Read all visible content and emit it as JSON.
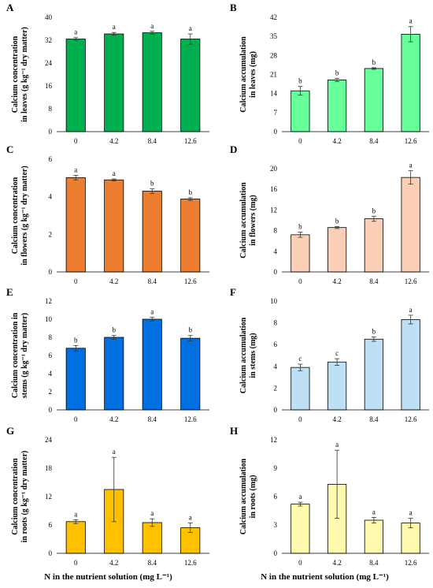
{
  "x_axis_title": "N in the nutrient solution (mg L⁻¹)",
  "chart_data": [
    {
      "panel": "A",
      "type": "bar",
      "color": "#00b04f",
      "ylabel": [
        "Calcium concentration",
        "in leaves (g kg⁻¹ dry matter)"
      ],
      "categories": [
        "0",
        "4.2",
        "8.4",
        "12.6"
      ],
      "values": [
        32.4,
        34.2,
        34.6,
        32.4
      ],
      "errors": [
        0.5,
        0.5,
        0.5,
        1.8
      ],
      "letters": [
        "a",
        "a",
        "a",
        "a"
      ],
      "ylim": [
        0,
        40
      ],
      "yticks": [
        0,
        8,
        16,
        24,
        32,
        40
      ]
    },
    {
      "panel": "B",
      "type": "bar",
      "color": "#66ff99",
      "ylabel": [
        "Calcium accumulation",
        "in leaves (mg)"
      ],
      "categories": [
        "0",
        "4.2",
        "8.4",
        "12.6"
      ],
      "values": [
        15.0,
        19.0,
        23.2,
        35.8
      ],
      "errors": [
        1.6,
        0.6,
        0.3,
        2.8
      ],
      "letters": [
        "b",
        "b",
        "b",
        "a"
      ],
      "ylim": [
        0,
        42
      ],
      "yticks": [
        0,
        7,
        14,
        21,
        28,
        35,
        42
      ]
    },
    {
      "panel": "C",
      "type": "bar",
      "color": "#ed7d31",
      "ylabel": [
        "Calcium concentration",
        "in flowers (g kg⁻¹ dry matter)"
      ],
      "categories": [
        "0",
        "4.2",
        "8.4",
        "12.6"
      ],
      "values": [
        5.02,
        4.9,
        4.3,
        3.88
      ],
      "errors": [
        0.12,
        0.05,
        0.12,
        0.07
      ],
      "letters": [
        "a",
        "a",
        "b",
        "b"
      ],
      "ylim": [
        0,
        6
      ],
      "yticks": [
        0,
        2,
        4,
        6
      ]
    },
    {
      "panel": "D",
      "type": "bar",
      "color": "#fbcfb6",
      "ylabel": [
        "Calcium accumulation",
        "in flowers (mg)"
      ],
      "categories": [
        "0",
        "4.2",
        "8.4",
        "12.6"
      ],
      "values": [
        7.2,
        8.6,
        10.3,
        18.3
      ],
      "errors": [
        0.5,
        0.2,
        0.5,
        1.3
      ],
      "letters": [
        "b",
        "b",
        "b",
        "a"
      ],
      "ylim": [
        0,
        20
      ],
      "yticks": [
        0,
        4,
        8,
        12,
        16,
        20
      ]
    },
    {
      "panel": "E",
      "type": "bar",
      "color": "#0070e0",
      "ylabel": [
        "Calcium concentration in",
        "stems (g kg⁻¹ dry matter)"
      ],
      "categories": [
        "0",
        "4.2",
        "8.4",
        "12.6"
      ],
      "values": [
        6.8,
        8.0,
        10.0,
        7.9
      ],
      "errors": [
        0.3,
        0.2,
        0.2,
        0.3
      ],
      "letters": [
        "b",
        "b",
        "a",
        "b"
      ],
      "ylim": [
        0,
        12
      ],
      "yticks": [
        0,
        2,
        4,
        6,
        8,
        10,
        12
      ]
    },
    {
      "panel": "F",
      "type": "bar",
      "color": "#bde0f5",
      "ylabel": [
        "Calcium accumulation",
        "in stems (mg)"
      ],
      "categories": [
        "0",
        "4.2",
        "8.4",
        "12.6"
      ],
      "values": [
        3.9,
        4.4,
        6.5,
        8.3
      ],
      "errors": [
        0.3,
        0.3,
        0.2,
        0.4
      ],
      "letters": [
        "c",
        "c",
        "b",
        "a"
      ],
      "ylim": [
        0,
        10
      ],
      "yticks": [
        0,
        2,
        4,
        6,
        8,
        10
      ]
    },
    {
      "panel": "G",
      "type": "bar",
      "color": "#ffc000",
      "ylabel": [
        "Calcium concentration",
        "in roots (g kg⁻¹ dry matter)"
      ],
      "categories": [
        "0",
        "4.2",
        "8.4",
        "12.6"
      ],
      "values": [
        6.7,
        13.5,
        6.5,
        5.4
      ],
      "errors": [
        0.4,
        6.8,
        0.8,
        1.0
      ],
      "letters": [
        "a",
        "a",
        "a",
        "a"
      ],
      "ylim": [
        0,
        24
      ],
      "yticks": [
        0,
        6,
        12,
        18,
        24
      ]
    },
    {
      "panel": "H",
      "type": "bar",
      "color": "#fffaae",
      "ylabel": [
        "Calcium accumulation",
        "in roots (mg)"
      ],
      "categories": [
        "0",
        "4.2",
        "8.4",
        "12.6"
      ],
      "values": [
        5.2,
        7.3,
        3.5,
        3.2
      ],
      "errors": [
        0.2,
        3.6,
        0.3,
        0.5
      ],
      "letters": [
        "a",
        "a",
        "a",
        "a"
      ],
      "ylim": [
        0,
        12
      ],
      "yticks": [
        0,
        3,
        6,
        9,
        12
      ]
    }
  ]
}
